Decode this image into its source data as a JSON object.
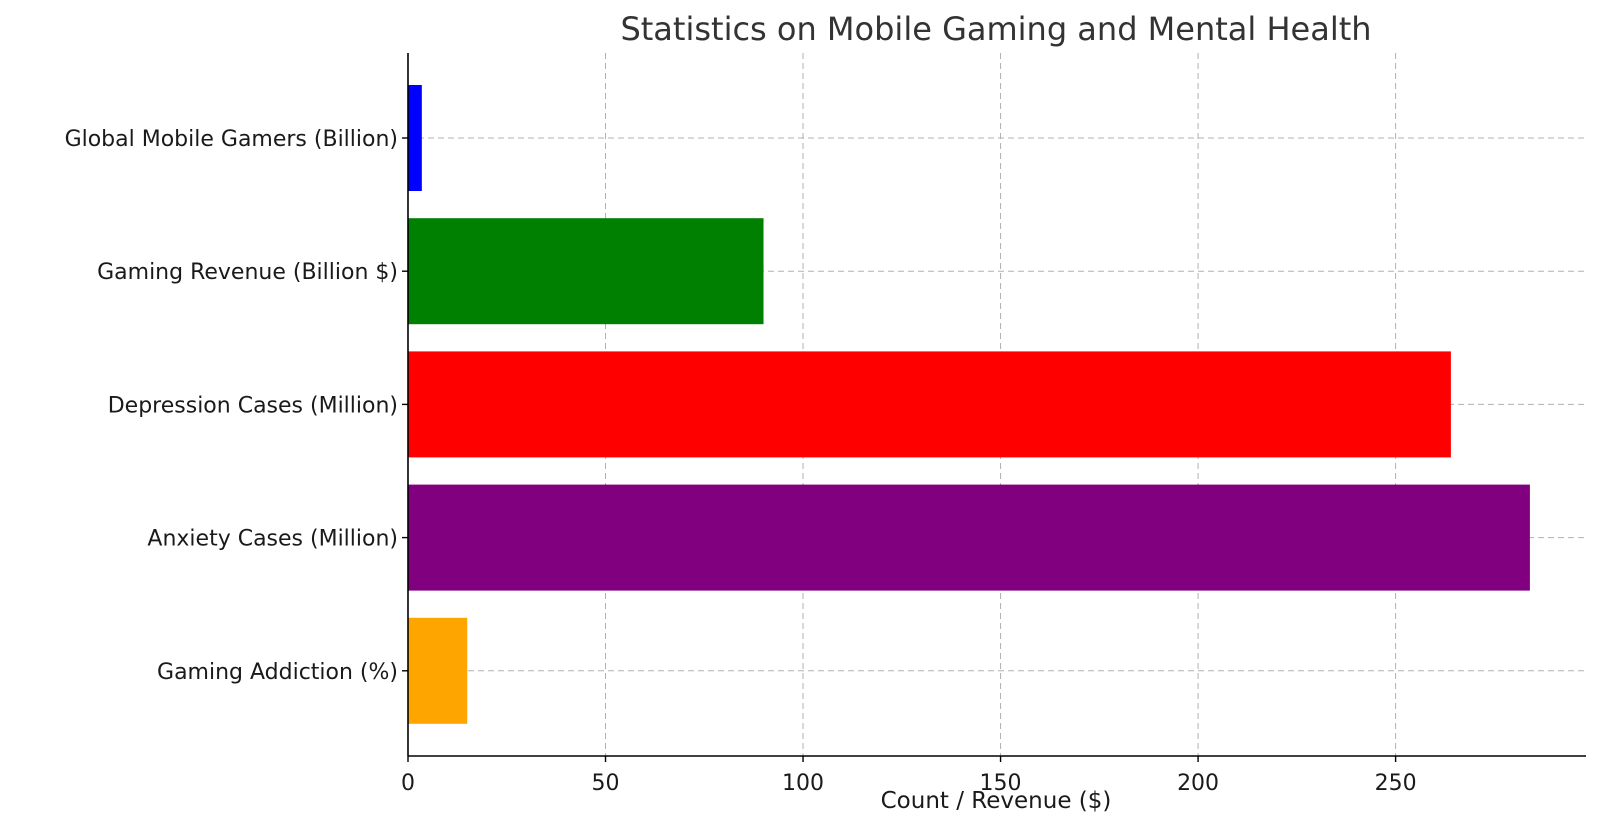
{
  "chart_data": {
    "type": "bar",
    "orientation": "horizontal",
    "title": "Statistics on Mobile Gaming and Mental Health",
    "xlabel": "Count / Revenue ($)",
    "ylabel": "",
    "categories": [
      "Global Mobile Gamers (Billion)",
      "Gaming Revenue (Billion $)",
      "Depression Cases (Million)",
      "Anxiety Cases (Million)",
      "Gaming Addiction (%)"
    ],
    "values": [
      3.5,
      90,
      264,
      284,
      15
    ],
    "colors": [
      "#0000ff",
      "#008000",
      "#ff0000",
      "#800080",
      "#ffa500"
    ],
    "xlim": [
      0,
      298.2
    ],
    "xticks": [
      0,
      50,
      100,
      150,
      200,
      250
    ],
    "grid": true
  }
}
